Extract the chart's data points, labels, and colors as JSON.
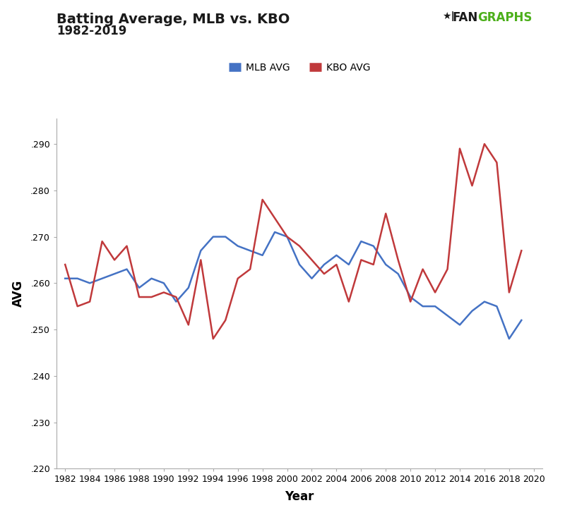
{
  "title_line1": "Batting Average, MLB vs. KBO",
  "title_line2": "1982-2019",
  "xlabel": "Year",
  "ylabel": "AVG",
  "years": [
    1982,
    1983,
    1984,
    1985,
    1986,
    1987,
    1988,
    1989,
    1990,
    1991,
    1992,
    1993,
    1994,
    1995,
    1996,
    1997,
    1998,
    1999,
    2000,
    2001,
    2002,
    2003,
    2004,
    2005,
    2006,
    2007,
    2008,
    2009,
    2010,
    2011,
    2012,
    2013,
    2014,
    2015,
    2016,
    2017,
    2018,
    2019
  ],
  "mlb_avg": [
    0.261,
    0.261,
    0.26,
    0.261,
    0.262,
    0.263,
    0.259,
    0.261,
    0.26,
    0.256,
    0.259,
    0.267,
    0.27,
    0.27,
    0.268,
    0.267,
    0.266,
    0.271,
    0.27,
    0.264,
    0.261,
    0.264,
    0.266,
    0.264,
    0.269,
    0.268,
    0.264,
    0.262,
    0.257,
    0.255,
    0.255,
    0.253,
    0.251,
    0.254,
    0.256,
    0.255,
    0.248,
    0.252
  ],
  "kbo_avg": [
    0.264,
    0.255,
    0.256,
    0.269,
    0.265,
    0.268,
    0.257,
    0.257,
    0.258,
    0.257,
    0.251,
    0.265,
    0.248,
    0.252,
    0.261,
    0.263,
    0.278,
    0.274,
    0.27,
    0.268,
    0.265,
    0.262,
    0.264,
    0.256,
    0.265,
    0.264,
    0.275,
    0.265,
    0.256,
    0.263,
    0.258,
    0.263,
    0.289,
    0.281,
    0.29,
    0.286,
    0.258,
    0.267
  ],
  "mlb_color": "#4472c4",
  "kbo_color": "#c0393b",
  "ylim_min": 0.22,
  "ylim_max": 0.2955,
  "yticks": [
    0.22,
    0.23,
    0.24,
    0.25,
    0.26,
    0.27,
    0.28,
    0.29
  ],
  "xticks": [
    1982,
    1984,
    1986,
    1988,
    1990,
    1992,
    1994,
    1996,
    1998,
    2000,
    2002,
    2004,
    2006,
    2008,
    2010,
    2012,
    2014,
    2016,
    2018,
    2020
  ],
  "legend_mlb": "MLB AVG",
  "legend_kbo": "KBO AVG",
  "line_width": 1.8,
  "bg_color": "#ffffff",
  "fangraphs_black": "#1a1a1a",
  "fangraphs_green": "#4caf1a"
}
